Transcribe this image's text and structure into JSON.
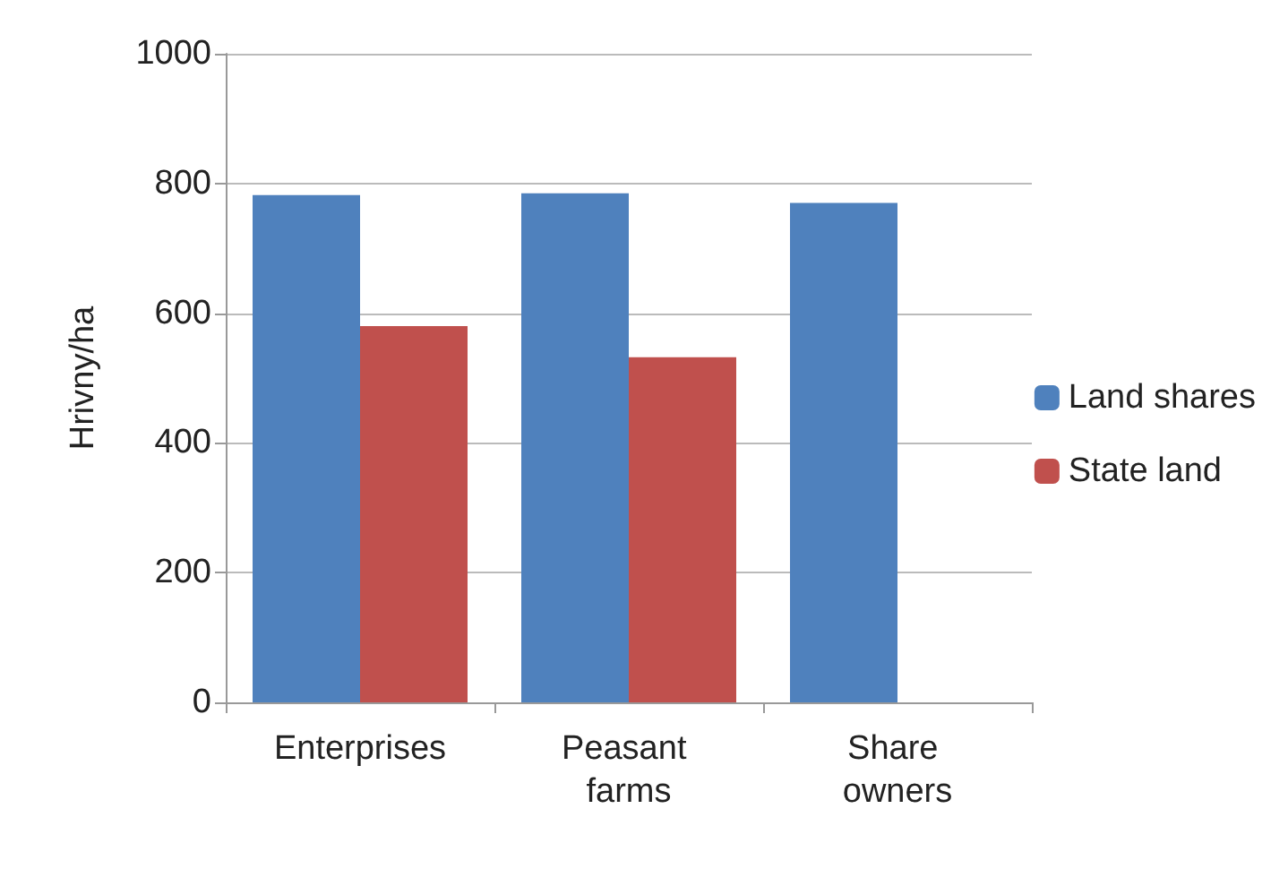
{
  "chart_data": {
    "type": "bar",
    "ylabel": "Hrivny/ha",
    "categories": [
      "Enterprises",
      "Peasant farms",
      "Share owners"
    ],
    "series": [
      {
        "name": "Land shares",
        "color": "#4f81bd",
        "values": [
          782,
          785,
          770
        ]
      },
      {
        "name": "State land",
        "color": "#c0504d",
        "values": [
          580,
          532,
          null
        ]
      }
    ],
    "ylim": [
      0,
      1000
    ],
    "yticks": [
      0,
      200,
      400,
      600,
      800,
      1000
    ],
    "grid": "y",
    "legend": "right"
  }
}
